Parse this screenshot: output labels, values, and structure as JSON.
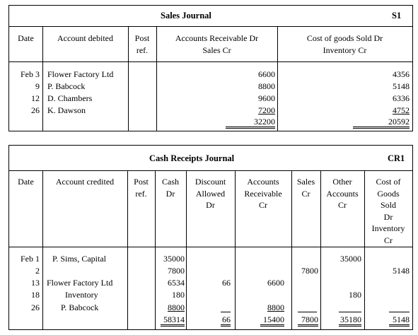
{
  "sales_journal": {
    "title": "Sales Journal",
    "code": "S1",
    "headers": {
      "date": "Date",
      "account": "Account debited",
      "post": [
        "Post",
        "ref."
      ],
      "ar": [
        "Accounts Receivable Dr",
        "Sales Cr"
      ],
      "cogs": [
        "Cost of goods Sold Dr",
        "Inventory Cr"
      ]
    },
    "rows": [
      {
        "date": "Feb 3",
        "account": "Flower Factory Ltd",
        "ar": "6600",
        "cogs": "4356"
      },
      {
        "date": "9",
        "account": "P. Babcock",
        "ar": "8800",
        "cogs": "5148"
      },
      {
        "date": "12",
        "account": "D. Chambers",
        "ar": "9600",
        "cogs": "6336"
      },
      {
        "date": "26",
        "account": "K. Dawson",
        "ar": "7200",
        "cogs": "4752"
      }
    ],
    "totals": {
      "ar": "32200",
      "cogs": "20592"
    }
  },
  "cash_receipts_journal": {
    "title": "Cash Receipts Journal",
    "code": "CR1",
    "headers": {
      "date": "Date",
      "account": "Account credited",
      "post": [
        "Post",
        "ref."
      ],
      "cash": [
        "Cash",
        "Dr"
      ],
      "discount": [
        "Discount",
        "Allowed",
        "Dr"
      ],
      "ar": [
        "Accounts",
        "Receivable",
        "Cr"
      ],
      "sales": [
        "Sales",
        "Cr"
      ],
      "other": [
        "Other",
        "Accounts",
        "Cr"
      ],
      "cogs": [
        "Cost of",
        "Goods",
        "Sold",
        "Dr",
        "Inventory",
        "Cr"
      ]
    },
    "rows": [
      {
        "date": "Feb 1",
        "account": "P. Sims, Capital",
        "cash": "35000",
        "discount": "",
        "ar": "",
        "sales": "",
        "other": "35000",
        "cogs": ""
      },
      {
        "date": "2",
        "account": "",
        "cash": "7800",
        "discount": "",
        "ar": "",
        "sales": "7800",
        "other": "",
        "cogs": "5148"
      },
      {
        "date": "13",
        "account": "Flower Factory Ltd",
        "cash": "6534",
        "discount": "66",
        "ar": "6600",
        "sales": "",
        "other": "",
        "cogs": ""
      },
      {
        "date": "18",
        "account": "Inventory",
        "cash": "180",
        "discount": "",
        "ar": "",
        "sales": "",
        "other": "180",
        "cogs": ""
      },
      {
        "date": "26",
        "account": "P. Babcock",
        "cash": "8800",
        "discount": "",
        "ar": "8800",
        "sales": "",
        "other": "",
        "cogs": ""
      }
    ],
    "totals": {
      "cash": "58314",
      "discount": "66",
      "ar": "15400",
      "sales": "7800",
      "other": "35180",
      "cogs": "5148"
    }
  }
}
